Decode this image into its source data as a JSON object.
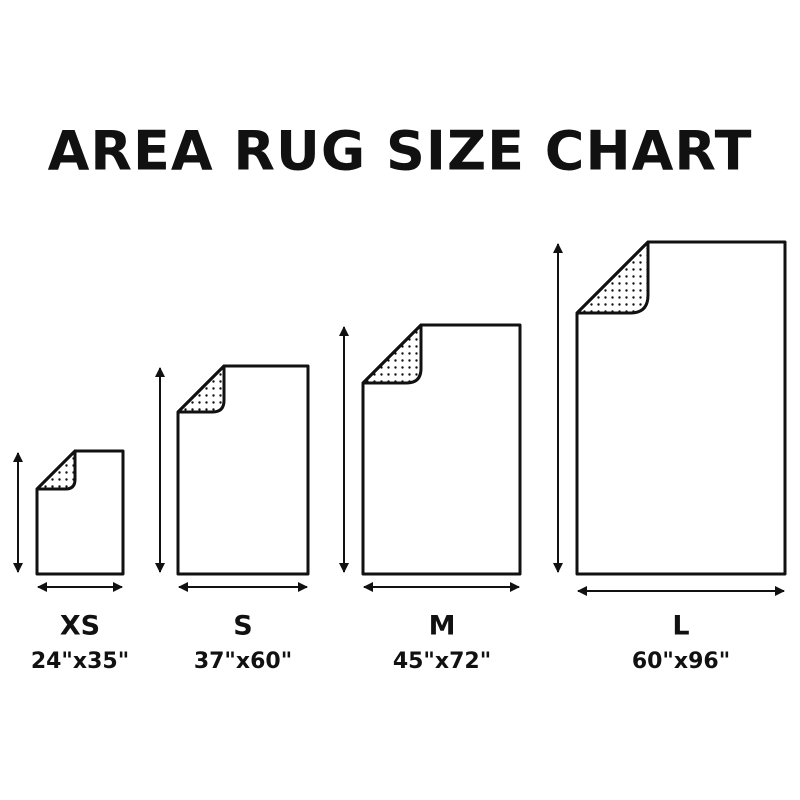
{
  "title": "AREA RUG SIZE CHART",
  "sizes": [
    {
      "name": "XS",
      "dimensions": "24\"x35\""
    },
    {
      "name": "S",
      "dimensions": "37\"x60\""
    },
    {
      "name": "M",
      "dimensions": "45\"x72\""
    },
    {
      "name": "L",
      "dimensions": "60\"x96\""
    }
  ]
}
